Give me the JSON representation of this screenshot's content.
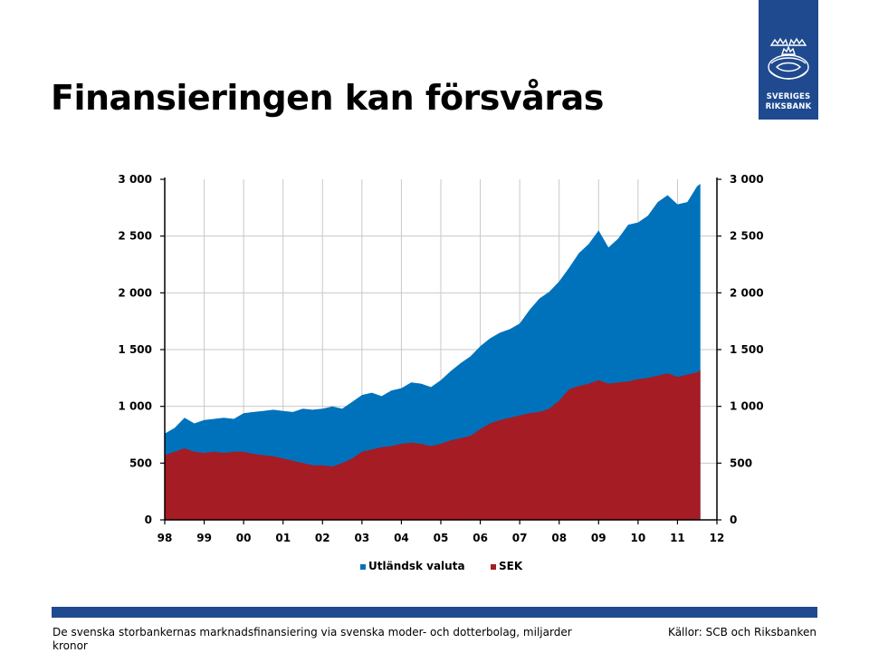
{
  "logo": {
    "line1": "SVERIGES",
    "line2": "RIKSBANK"
  },
  "title": "Finansieringen kan försvåras",
  "footnote": "De svenska storbankernas marknadsfinansiering via svenska moder- och dotterbolag, miljarder kronor",
  "source": "Källor: SCB och Riksbanken",
  "colors": {
    "utlandsk": "#0072bc",
    "sek": "#a51c24",
    "brand": "#1f4a8f"
  },
  "chart_data": {
    "type": "area",
    "stacked": true,
    "title": "",
    "xlabel": "",
    "ylabel": "",
    "ylim": [
      0,
      3000
    ],
    "xlim": [
      1998,
      2012
    ],
    "y_ticks": [
      "0",
      "500",
      "1 000",
      "1 500",
      "2 000",
      "2 500",
      "3 000"
    ],
    "y_tick_values": [
      0,
      500,
      1000,
      1500,
      2000,
      2500,
      3000
    ],
    "y2_ticks": [
      "0",
      "500",
      "1 000",
      "1 500",
      "2 000",
      "2 500",
      "3 000"
    ],
    "x_ticks": [
      "98",
      "99",
      "00",
      "01",
      "02",
      "03",
      "04",
      "05",
      "06",
      "07",
      "08",
      "09",
      "10",
      "11",
      "12"
    ],
    "grid": true,
    "legend_position": "bottom",
    "series": [
      {
        "name": "Utländsk valuta",
        "color": "#0072bc",
        "role": "total",
        "x": [
          1998.0,
          1998.25,
          1998.5,
          1998.75,
          1999.0,
          1999.25,
          1999.5,
          1999.75,
          2000.0,
          2000.25,
          2000.5,
          2000.75,
          2001.0,
          2001.25,
          2001.5,
          2001.75,
          2002.0,
          2002.25,
          2002.5,
          2002.75,
          2003.0,
          2003.25,
          2003.5,
          2003.75,
          2004.0,
          2004.25,
          2004.5,
          2004.75,
          2005.0,
          2005.25,
          2005.5,
          2005.75,
          2006.0,
          2006.25,
          2006.5,
          2006.75,
          2007.0,
          2007.25,
          2007.5,
          2007.75,
          2008.0,
          2008.25,
          2008.5,
          2008.75,
          2009.0,
          2009.25,
          2009.5,
          2009.75,
          2010.0,
          2010.25,
          2010.5,
          2010.75,
          2011.0,
          2011.25,
          2011.5,
          2011.58
        ],
        "values": [
          760,
          810,
          900,
          850,
          880,
          890,
          900,
          890,
          940,
          950,
          960,
          970,
          960,
          950,
          980,
          970,
          980,
          1000,
          980,
          1040,
          1100,
          1120,
          1090,
          1140,
          1160,
          1210,
          1200,
          1170,
          1230,
          1310,
          1380,
          1440,
          1530,
          1600,
          1650,
          1680,
          1730,
          1850,
          1950,
          2010,
          2100,
          2220,
          2350,
          2430,
          2550,
          2400,
          2480,
          2600,
          2620,
          2680,
          2800,
          2860,
          2780,
          2800,
          2940,
          2960
        ]
      },
      {
        "name": "SEK",
        "color": "#a51c24",
        "x": [
          1998.0,
          1998.25,
          1998.5,
          1998.75,
          1999.0,
          1999.25,
          1999.5,
          1999.75,
          2000.0,
          2000.25,
          2000.5,
          2000.75,
          2001.0,
          2001.25,
          2001.5,
          2001.75,
          2002.0,
          2002.25,
          2002.5,
          2002.75,
          2003.0,
          2003.25,
          2003.5,
          2003.75,
          2004.0,
          2004.25,
          2004.5,
          2004.75,
          2005.0,
          2005.25,
          2005.5,
          2005.75,
          2006.0,
          2006.25,
          2006.5,
          2006.75,
          2007.0,
          2007.25,
          2007.5,
          2007.75,
          2008.0,
          2008.25,
          2008.5,
          2008.75,
          2009.0,
          2009.25,
          2009.5,
          2009.75,
          2010.0,
          2010.25,
          2010.5,
          2010.75,
          2011.0,
          2011.25,
          2011.5,
          2011.58
        ],
        "values": [
          570,
          600,
          630,
          600,
          590,
          600,
          590,
          600,
          600,
          580,
          570,
          560,
          540,
          520,
          500,
          480,
          480,
          470,
          500,
          540,
          600,
          620,
          640,
          650,
          670,
          680,
          670,
          650,
          670,
          700,
          720,
          740,
          800,
          850,
          880,
          900,
          920,
          940,
          950,
          980,
          1050,
          1150,
          1180,
          1200,
          1230,
          1200,
          1210,
          1220,
          1240,
          1250,
          1270,
          1290,
          1260,
          1280,
          1300,
          1320
        ]
      }
    ]
  }
}
